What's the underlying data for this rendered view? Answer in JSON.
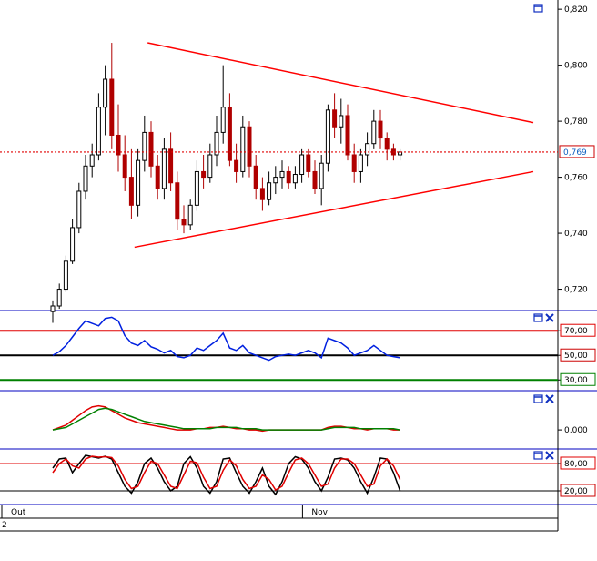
{
  "chart_data": [
    {
      "panel": "price",
      "type": "candlestick",
      "title": "",
      "ylim": [
        0.714,
        0.822
      ],
      "yticks": [
        "0,820",
        "0,800",
        "0,780",
        "0,760",
        "0,740",
        "0,720"
      ],
      "last_price_label": "0,769",
      "last_price": 0.769,
      "colors": {
        "up": "#000000",
        "down": "#b00000",
        "trendline": "#ff0000",
        "last_price_line": "#e00000",
        "last_price_text": "#1060c0"
      },
      "trendlines": [
        {
          "name": "upper",
          "from": {
            "bar": 11,
            "y": 0.808
          },
          "to": {
            "bar": 65,
            "y": 0.7795
          }
        },
        {
          "name": "lower",
          "from": {
            "bar": 9,
            "y": 0.735
          },
          "to": {
            "bar": 65,
            "y": 0.762
          }
        }
      ],
      "candles": [
        [
          0.712,
          0.716,
          0.708,
          0.714
        ],
        [
          0.714,
          0.722,
          0.713,
          0.72
        ],
        [
          0.72,
          0.732,
          0.719,
          0.73
        ],
        [
          0.73,
          0.745,
          0.729,
          0.742
        ],
        [
          0.742,
          0.758,
          0.74,
          0.755
        ],
        [
          0.755,
          0.768,
          0.752,
          0.764
        ],
        [
          0.764,
          0.772,
          0.76,
          0.768
        ],
        [
          0.768,
          0.79,
          0.766,
          0.785
        ],
        [
          0.785,
          0.8,
          0.775,
          0.795
        ],
        [
          0.795,
          0.808,
          0.77,
          0.775
        ],
        [
          0.775,
          0.786,
          0.762,
          0.768
        ],
        [
          0.768,
          0.775,
          0.755,
          0.76
        ],
        [
          0.76,
          0.77,
          0.745,
          0.75
        ],
        [
          0.75,
          0.77,
          0.746,
          0.766
        ],
        [
          0.766,
          0.782,
          0.762,
          0.776
        ],
        [
          0.776,
          0.78,
          0.76,
          0.764
        ],
        [
          0.764,
          0.768,
          0.752,
          0.756
        ],
        [
          0.756,
          0.774,
          0.752,
          0.77
        ],
        [
          0.77,
          0.776,
          0.755,
          0.758
        ],
        [
          0.758,
          0.762,
          0.741,
          0.745
        ],
        [
          0.745,
          0.75,
          0.74,
          0.743
        ],
        [
          0.743,
          0.752,
          0.741,
          0.75
        ],
        [
          0.75,
          0.766,
          0.748,
          0.762
        ],
        [
          0.762,
          0.768,
          0.756,
          0.76
        ],
        [
          0.76,
          0.772,
          0.758,
          0.768
        ],
        [
          0.768,
          0.782,
          0.764,
          0.776
        ],
        [
          0.776,
          0.8,
          0.772,
          0.785
        ],
        [
          0.785,
          0.79,
          0.764,
          0.766
        ],
        [
          0.766,
          0.772,
          0.758,
          0.762
        ],
        [
          0.762,
          0.782,
          0.76,
          0.778
        ],
        [
          0.778,
          0.78,
          0.76,
          0.764
        ],
        [
          0.764,
          0.768,
          0.752,
          0.756
        ],
        [
          0.756,
          0.76,
          0.748,
          0.752
        ],
        [
          0.752,
          0.762,
          0.75,
          0.758
        ],
        [
          0.758,
          0.764,
          0.754,
          0.76
        ],
        [
          0.76,
          0.766,
          0.756,
          0.762
        ],
        [
          0.762,
          0.764,
          0.756,
          0.758
        ],
        [
          0.758,
          0.764,
          0.756,
          0.761
        ],
        [
          0.761,
          0.77,
          0.758,
          0.768
        ],
        [
          0.768,
          0.77,
          0.76,
          0.762
        ],
        [
          0.762,
          0.766,
          0.754,
          0.756
        ],
        [
          0.756,
          0.768,
          0.75,
          0.765
        ],
        [
          0.765,
          0.786,
          0.762,
          0.784
        ],
        [
          0.784,
          0.79,
          0.774,
          0.778
        ],
        [
          0.778,
          0.788,
          0.772,
          0.782
        ],
        [
          0.782,
          0.786,
          0.766,
          0.768
        ],
        [
          0.768,
          0.772,
          0.758,
          0.762
        ],
        [
          0.762,
          0.77,
          0.758,
          0.768
        ],
        [
          0.768,
          0.776,
          0.764,
          0.772
        ],
        [
          0.772,
          0.784,
          0.77,
          0.78
        ],
        [
          0.78,
          0.784,
          0.77,
          0.774
        ],
        [
          0.774,
          0.776,
          0.766,
          0.77
        ],
        [
          0.77,
          0.772,
          0.766,
          0.768
        ],
        [
          0.768,
          0.77,
          0.766,
          0.769
        ]
      ]
    },
    {
      "panel": "rsi",
      "type": "line",
      "ylim": [
        25,
        82
      ],
      "yticks": [
        "70,00",
        "50,00",
        "30,00"
      ],
      "levels": [
        {
          "value": 70,
          "color": "#e00000"
        },
        {
          "value": 50,
          "color": "#000000"
        },
        {
          "value": 30,
          "color": "#008000"
        }
      ],
      "series": [
        {
          "color": "#0020e0",
          "values": [
            50,
            53,
            58,
            65,
            72,
            78,
            76,
            74,
            80,
            81,
            78,
            66,
            60,
            58,
            62,
            57,
            55,
            52,
            54,
            49,
            48,
            50,
            56,
            54,
            58,
            62,
            68,
            56,
            54,
            58,
            52,
            50,
            48,
            46,
            49,
            50,
            51,
            50,
            52,
            54,
            52,
            48,
            64,
            62,
            60,
            56,
            50,
            52,
            54,
            58,
            54,
            50,
            49,
            48
          ]
        }
      ]
    },
    {
      "panel": "macd",
      "type": "line",
      "ylim": [
        -0.012,
        0.028
      ],
      "yticks": [
        "0,000"
      ],
      "series": [
        {
          "color": "#e00000",
          "values": [
            0.0,
            0.002,
            0.004,
            0.008,
            0.012,
            0.016,
            0.019,
            0.02,
            0.019,
            0.016,
            0.013,
            0.01,
            0.008,
            0.006,
            0.005,
            0.004,
            0.003,
            0.002,
            0.001,
            0.0,
            0.0,
            0.0,
            0.001,
            0.001,
            0.002,
            0.002,
            0.003,
            0.002,
            0.001,
            0.001,
            0.0,
            0.0,
            -0.001,
            0.0,
            0.0,
            0.0,
            0.0,
            0.0,
            0.0,
            0.0,
            0.0,
            0.0,
            0.002,
            0.003,
            0.003,
            0.002,
            0.001,
            0.001,
            0.0,
            0.001,
            0.001,
            0.001,
            0.0,
            0.0
          ]
        },
        {
          "color": "#008000",
          "values": [
            0.0,
            0.001,
            0.002,
            0.005,
            0.008,
            0.011,
            0.014,
            0.017,
            0.018,
            0.017,
            0.015,
            0.013,
            0.011,
            0.009,
            0.007,
            0.006,
            0.005,
            0.004,
            0.003,
            0.002,
            0.001,
            0.001,
            0.001,
            0.001,
            0.001,
            0.002,
            0.002,
            0.002,
            0.002,
            0.001,
            0.001,
            0.001,
            0.0,
            0.0,
            0.0,
            0.0,
            0.0,
            0.0,
            0.0,
            0.0,
            0.0,
            0.0,
            0.001,
            0.002,
            0.002,
            0.002,
            0.002,
            0.001,
            0.001,
            0.001,
            0.001,
            0.001,
            0.001,
            0.0
          ]
        }
      ]
    },
    {
      "panel": "stochastic",
      "type": "line",
      "ylim": [
        0,
        100
      ],
      "yticks": [
        "80,00",
        "20,00"
      ],
      "levels": [
        {
          "value": 80,
          "color": "#e00000"
        },
        {
          "value": 20,
          "color": "#000000"
        }
      ],
      "series": [
        {
          "color": "#000000",
          "values": [
            70,
            90,
            92,
            60,
            80,
            98,
            95,
            92,
            96,
            90,
            60,
            30,
            15,
            40,
            80,
            92,
            70,
            40,
            20,
            30,
            80,
            95,
            70,
            30,
            15,
            40,
            90,
            92,
            60,
            30,
            15,
            40,
            70,
            30,
            12,
            40,
            80,
            95,
            90,
            70,
            40,
            20,
            50,
            90,
            92,
            88,
            70,
            40,
            15,
            50,
            92,
            90,
            60,
            20
          ]
        },
        {
          "color": "#e00000",
          "values": [
            60,
            80,
            90,
            75,
            70,
            90,
            96,
            94,
            95,
            93,
            75,
            45,
            25,
            30,
            60,
            85,
            80,
            55,
            30,
            25,
            55,
            85,
            82,
            50,
            25,
            30,
            65,
            88,
            75,
            45,
            25,
            30,
            55,
            45,
            22,
            30,
            60,
            88,
            92,
            80,
            55,
            30,
            35,
            70,
            90,
            90,
            80,
            55,
            30,
            35,
            75,
            90,
            75,
            45
          ]
        }
      ]
    },
    {
      "panel": "time-axis",
      "type": "axis",
      "labels": [
        {
          "bar": 0,
          "text": "Out"
        },
        {
          "bar": 42,
          "text": "Nov"
        }
      ],
      "status_text": "2"
    }
  ]
}
